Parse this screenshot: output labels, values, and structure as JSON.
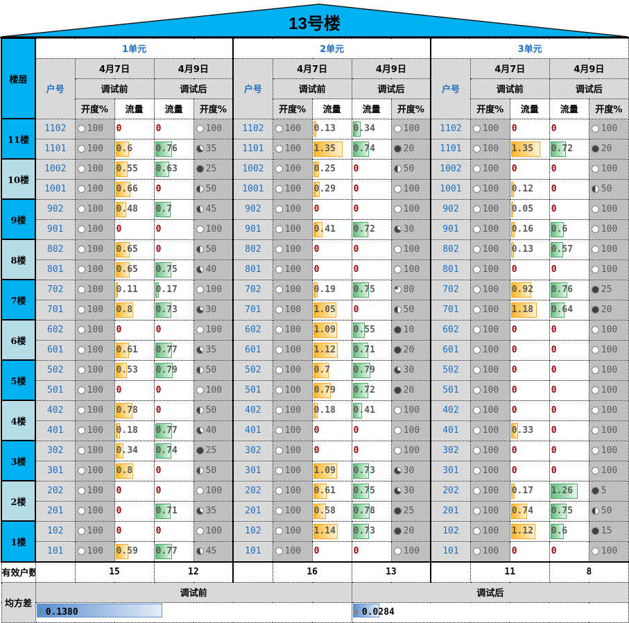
{
  "title": "13号楼",
  "colors": {
    "roof": "#00b0f0",
    "floor_dark": "#00b0f0",
    "floor_light": "#b7dee8",
    "zero_value": "#9c0006",
    "bar_before": "#ffb628",
    "bar_after": "#63be7b",
    "household_text": "#1f6fbf"
  },
  "header": {
    "floor_label": "楼层",
    "household_label": "户号",
    "date_before": "4月7日",
    "date_after": "4月9日",
    "status_before": "调试前",
    "status_after": "调试后",
    "col_opening": "开度%",
    "col_flow": "流量"
  },
  "units": [
    {
      "name": "1单元"
    },
    {
      "name": "2单元"
    },
    {
      "name": "3单元"
    }
  ],
  "floors": [
    "11楼",
    "10楼",
    "9楼",
    "8楼",
    "7楼",
    "6楼",
    "5楼",
    "4楼",
    "3楼",
    "2楼",
    "1楼"
  ],
  "rows": [
    {
      "hh": [
        "1102",
        "1102",
        "1102"
      ],
      "u": [
        [
          100,
          0,
          0,
          100
        ],
        [
          100,
          0.13,
          0.34,
          100
        ],
        [
          100,
          0,
          0,
          100
        ]
      ]
    },
    {
      "hh": [
        "1101",
        "1101",
        "1101"
      ],
      "u": [
        [
          100,
          0.6,
          0.76,
          35
        ],
        [
          100,
          1.35,
          0.74,
          20
        ],
        [
          100,
          1.35,
          0.72,
          20
        ]
      ]
    },
    {
      "hh": [
        "1002",
        "1002",
        "1002"
      ],
      "u": [
        [
          100,
          0.55,
          0.63,
          25
        ],
        [
          100,
          0.25,
          0,
          50
        ],
        [
          100,
          0,
          0,
          100
        ]
      ]
    },
    {
      "hh": [
        "1001",
        "1001",
        "1001"
      ],
      "u": [
        [
          100,
          0.66,
          0,
          50
        ],
        [
          100,
          0.29,
          0,
          100
        ],
        [
          100,
          0.12,
          0,
          50
        ]
      ]
    },
    {
      "hh": [
        "902",
        "902",
        "902"
      ],
      "u": [
        [
          100,
          0.48,
          0.7,
          45
        ],
        [
          100,
          0,
          0,
          100
        ],
        [
          100,
          0.05,
          0,
          100
        ]
      ]
    },
    {
      "hh": [
        "901",
        "901",
        "901"
      ],
      "u": [
        [
          100,
          0,
          0,
          100
        ],
        [
          100,
          0.41,
          0.72,
          30
        ],
        [
          100,
          0.16,
          0.6,
          100
        ]
      ]
    },
    {
      "hh": [
        "802",
        "802",
        "802"
      ],
      "u": [
        [
          100,
          0.65,
          0,
          50
        ],
        [
          100,
          0,
          0,
          100
        ],
        [
          100,
          0.13,
          0.57,
          100
        ]
      ]
    },
    {
      "hh": [
        "801",
        "801",
        "801"
      ],
      "u": [
        [
          100,
          0.65,
          0.75,
          40
        ],
        [
          100,
          0,
          0,
          100
        ],
        [
          100,
          0,
          0,
          100
        ]
      ]
    },
    {
      "hh": [
        "702",
        "702",
        "702"
      ],
      "u": [
        [
          100,
          0.11,
          0.17,
          100
        ],
        [
          100,
          0.19,
          0.75,
          80
        ],
        [
          100,
          0.92,
          0.76,
          25
        ]
      ]
    },
    {
      "hh": [
        "701",
        "701",
        "701"
      ],
      "u": [
        [
          100,
          0.8,
          0.73,
          30
        ],
        [
          100,
          1.05,
          0,
          50
        ],
        [
          100,
          1.18,
          0.64,
          20
        ]
      ]
    },
    {
      "hh": [
        "602",
        "602",
        "602"
      ],
      "u": [
        [
          100,
          0,
          0,
          100
        ],
        [
          100,
          1.09,
          0.55,
          10
        ],
        [
          100,
          0,
          0,
          100
        ]
      ]
    },
    {
      "hh": [
        "601",
        "601",
        "601"
      ],
      "u": [
        [
          100,
          0.61,
          0.77,
          35
        ],
        [
          100,
          1.12,
          0.71,
          20
        ],
        [
          100,
          0,
          0,
          100
        ]
      ]
    },
    {
      "hh": [
        "502",
        "502",
        "502"
      ],
      "u": [
        [
          100,
          0.53,
          0.79,
          50
        ],
        [
          100,
          0.7,
          0.79,
          30
        ],
        [
          100,
          0,
          0,
          100
        ]
      ]
    },
    {
      "hh": [
        "501",
        "501",
        "501"
      ],
      "u": [
        [
          100,
          0,
          0,
          100
        ],
        [
          100,
          0.79,
          0.72,
          20
        ],
        [
          100,
          0,
          0,
          100
        ]
      ]
    },
    {
      "hh": [
        "402",
        "402",
        "402"
      ],
      "u": [
        [
          100,
          0.78,
          0,
          50
        ],
        [
          100,
          0.18,
          0.41,
          100
        ],
        [
          100,
          0,
          0,
          100
        ]
      ]
    },
    {
      "hh": [
        "401",
        "401",
        "401"
      ],
      "u": [
        [
          100,
          0.18,
          0.77,
          40
        ],
        [
          100,
          0,
          0,
          100
        ],
        [
          100,
          0.33,
          0,
          100
        ]
      ]
    },
    {
      "hh": [
        "302",
        "302",
        "302"
      ],
      "u": [
        [
          100,
          0.34,
          0.74,
          25
        ],
        [
          100,
          0,
          0,
          100
        ],
        [
          100,
          0,
          0,
          100
        ]
      ]
    },
    {
      "hh": [
        "301",
        "301",
        "301"
      ],
      "u": [
        [
          100,
          0.8,
          0,
          50
        ],
        [
          100,
          1.09,
          0.73,
          30
        ],
        [
          100,
          0,
          0,
          100
        ]
      ]
    },
    {
      "hh": [
        "202",
        "202",
        "202"
      ],
      "u": [
        [
          100,
          0,
          0,
          100
        ],
        [
          100,
          0.61,
          0.75,
          30
        ],
        [
          100,
          0.17,
          1.26,
          5
        ]
      ]
    },
    {
      "hh": [
        "201",
        "201",
        "201"
      ],
      "u": [
        [
          100,
          0,
          0.71,
          35
        ],
        [
          100,
          0.58,
          0.78,
          25
        ],
        [
          100,
          0.74,
          0.75,
          50
        ]
      ]
    },
    {
      "hh": [
        "102",
        "102",
        "102"
      ],
      "u": [
        [
          100,
          0,
          0,
          100
        ],
        [
          100,
          1.14,
          0.73,
          20
        ],
        [
          100,
          1.12,
          0.6,
          15
        ]
      ]
    },
    {
      "hh": [
        "101",
        "101",
        "101"
      ],
      "u": [
        [
          100,
          0.59,
          0.77,
          45
        ],
        [
          100,
          0,
          0,
          100
        ],
        [
          100,
          0,
          0,
          100
        ]
      ]
    }
  ],
  "summary": {
    "valid_label": "有效户数",
    "valid_counts": [
      [
        "15",
        "12"
      ],
      [
        "16",
        "13"
      ],
      [
        "11",
        "8"
      ]
    ],
    "variance_label": "均方差",
    "variance_before_label": "调试前",
    "variance_after_label": "调试后",
    "variance_before": "0.1380",
    "variance_after": "0.0284",
    "variance_before_icon": "up-arrow-icon",
    "variance_after_icon": "down-arrow-icon"
  }
}
